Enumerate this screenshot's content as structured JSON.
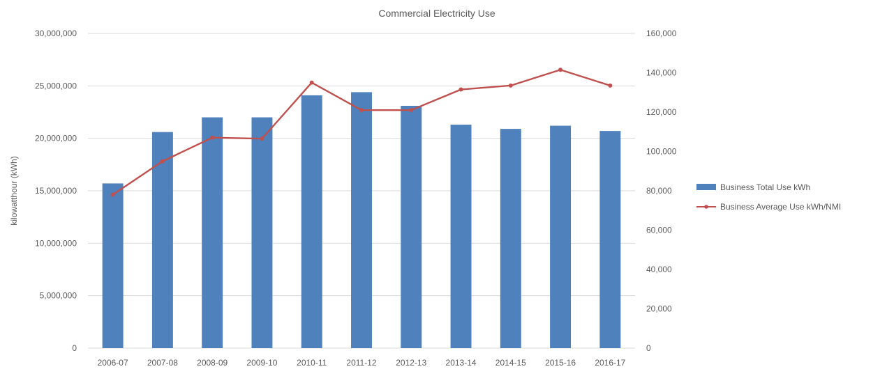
{
  "chart_data": {
    "type": "bar",
    "title": "Commercial Electricity Use",
    "xlabel": "",
    "ylabel": "kilowatthour (kWh)",
    "y2label": "",
    "categories": [
      "2006-07",
      "2007-08",
      "2008-09",
      "2009-10",
      "2010-11",
      "2011-12",
      "2012-13",
      "2013-14",
      "2014-15",
      "2015-16",
      "2016-17"
    ],
    "ylim": [
      0,
      30000000
    ],
    "y2lim": [
      0,
      160000
    ],
    "yticks": [
      "0",
      "5,000,000",
      "10,000,000",
      "15,000,000",
      "20,000,000",
      "25,000,000",
      "30,000,000"
    ],
    "y2ticks": [
      "0",
      "20,000",
      "40,000",
      "60,000",
      "80,000",
      "100,000",
      "120,000",
      "140,000",
      "160,000"
    ],
    "grid": true,
    "legend_position": "right",
    "series": [
      {
        "name": "Business Total Use kWh",
        "type": "bar",
        "axis": "left",
        "color": "#4f81bd",
        "values": [
          15700000,
          20600000,
          22000000,
          22000000,
          24100000,
          24400000,
          23100000,
          21300000,
          20900000,
          21200000,
          20700000
        ]
      },
      {
        "name": "Business Average Use kWh/NMI",
        "type": "line",
        "axis": "right",
        "color": "#c0504d",
        "values": [
          78000,
          95000,
          107000,
          106500,
          135000,
          121000,
          121000,
          131500,
          133500,
          141500,
          133500
        ]
      }
    ]
  }
}
